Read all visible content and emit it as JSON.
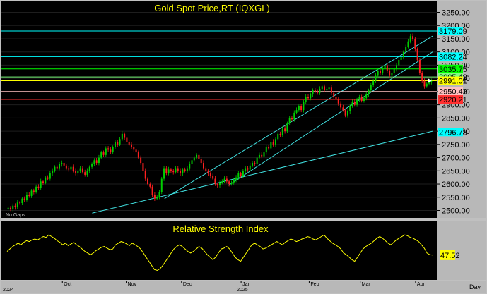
{
  "chart_data": [
    {
      "type": "candlestick",
      "title": "Gold Spot Price,RT  (IQXGL)",
      "corner_note": "No Gaps",
      "ylim": [
        2480,
        3270
      ],
      "y_ticks": [
        2500,
        2550,
        2600,
        2650,
        2700,
        2750,
        2800,
        2850,
        2900,
        2950,
        3000,
        3050,
        3100,
        3150,
        3200,
        3250
      ],
      "y_tick_labels": [
        "2500.00",
        "2550.00",
        "2600.00",
        "2650.00",
        "2700.00",
        "2750.00",
        "2800.00",
        "2850.00",
        "2900.00",
        "2950.00",
        "3000.00",
        "3050.00",
        "3100.00",
        "3150.00",
        "3200.00",
        "3250.00"
      ],
      "up_color": "#00d000",
      "down_color": "#ff2020",
      "closes": [
        2510,
        2505,
        2518,
        2512,
        2530,
        2528,
        2545,
        2540,
        2560,
        2555,
        2575,
        2570,
        2590,
        2585,
        2610,
        2605,
        2625,
        2620,
        2640,
        2650,
        2665,
        2660,
        2675,
        2680,
        2670,
        2660,
        2655,
        2665,
        2650,
        2640,
        2650,
        2660,
        2645,
        2635,
        2650,
        2665,
        2675,
        2690,
        2680,
        2700,
        2720,
        2710,
        2735,
        2730,
        2720,
        2740,
        2760,
        2750,
        2770,
        2790,
        2775,
        2760,
        2750,
        2740,
        2730,
        2720,
        2700,
        2680,
        2650,
        2620,
        2600,
        2590,
        2560,
        2545,
        2550,
        2570,
        2620,
        2660,
        2640,
        2655,
        2650,
        2645,
        2660,
        2650,
        2640,
        2655,
        2650,
        2660,
        2675,
        2690,
        2700,
        2710,
        2695,
        2680,
        2660,
        2650,
        2640,
        2630,
        2620,
        2600,
        2595,
        2605,
        2610,
        2620,
        2610,
        2600,
        2605,
        2615,
        2625,
        2640,
        2630,
        2650,
        2660,
        2655,
        2670,
        2680,
        2675,
        2700,
        2710,
        2705,
        2720,
        2740,
        2735,
        2760,
        2750,
        2770,
        2790,
        2785,
        2810,
        2800,
        2830,
        2850,
        2845,
        2870,
        2880,
        2895,
        2880,
        2910,
        2930,
        2925,
        2940,
        2955,
        2950,
        2945,
        2960,
        2970,
        2955,
        2960,
        2965,
        2945,
        2930,
        2920,
        2905,
        2890,
        2880,
        2860,
        2875,
        2895,
        2910,
        2900,
        2920,
        2930,
        2915,
        2925,
        2940,
        2955,
        2975,
        2990,
        3010,
        3030,
        3020,
        3040,
        3050,
        3030,
        3010,
        3020,
        3035,
        3050,
        3070,
        3080,
        3100,
        3120,
        3140,
        3160,
        3150,
        3110,
        3070,
        3020,
        2990,
        2970,
        2980,
        2985,
        2991.01
      ],
      "horizontal_levels": [
        {
          "value": 3179.09,
          "label": "3179.09",
          "color": "#00ffff",
          "text_color": "#000000"
        },
        {
          "value": 3082.24,
          "label": "3082.24",
          "color": "#00ffff",
          "text_color": "#000000"
        },
        {
          "value": 3035.75,
          "label": "3035.75",
          "color": "#00ff00",
          "text_color": "#000000"
        },
        {
          "value": 3005.42,
          "label": "3005.42",
          "color": "#80ff80",
          "text_color": "#000000"
        },
        {
          "value": 2991.01,
          "label": "2991.01",
          "color": "#ffff00",
          "text_color": "#000000"
        },
        {
          "value": 2950.42,
          "label": "2950.42",
          "color": "#ffc0c0",
          "text_color": "#000000"
        },
        {
          "value": 2920.21,
          "label": "2920.21",
          "color": "#ff3030",
          "text_color": "#000000"
        },
        {
          "value": 2796.78,
          "label": "2796.78",
          "color": "#00ffff",
          "text_color": "#000000"
        }
      ],
      "trend_lines": [
        {
          "from": [
            0.2,
            2490
          ],
          "to": [
            1.0,
            2800
          ],
          "color": "#40e0e0"
        },
        {
          "from": [
            0.37,
            2545
          ],
          "to": [
            1.0,
            3160
          ],
          "color": "#40e0e0"
        },
        {
          "from": [
            0.52,
            2595
          ],
          "to": [
            1.0,
            3100
          ],
          "color": "#40e0e0"
        }
      ]
    },
    {
      "type": "line",
      "title": "Relative Strength Index",
      "series_color": "#ffff00",
      "last_value": 47.52,
      "last_label": "47.52",
      "ylim": [
        20,
        85
      ],
      "values": [
        52,
        55,
        58,
        60,
        62,
        60,
        63,
        65,
        64,
        66,
        67,
        66,
        68,
        70,
        69,
        72,
        70,
        68,
        65,
        63,
        60,
        62,
        59,
        61,
        63,
        60,
        58,
        55,
        52,
        50,
        48,
        50,
        53,
        55,
        57,
        58,
        56,
        54,
        55,
        60,
        62,
        64,
        63,
        61,
        59,
        62,
        60,
        58,
        55,
        50,
        45,
        40,
        35,
        30,
        29,
        31,
        35,
        40,
        45,
        50,
        55,
        58,
        60,
        58,
        55,
        52,
        50,
        52,
        55,
        58,
        56,
        52,
        48,
        45,
        42,
        45,
        50,
        55,
        56,
        58,
        55,
        50,
        45,
        42,
        40,
        45,
        50,
        55,
        60,
        62,
        60,
        58,
        55,
        56,
        58,
        60,
        62,
        64,
        62,
        60,
        63,
        65,
        67,
        66,
        64,
        65,
        67,
        68,
        70,
        69,
        67,
        66,
        68,
        70,
        72,
        68,
        65,
        62,
        60,
        58,
        55,
        50,
        48,
        45,
        42,
        40,
        45,
        50,
        55,
        58,
        60,
        62,
        65,
        68,
        70,
        68,
        65,
        62,
        60,
        63,
        66,
        68,
        70,
        72,
        71,
        69,
        68,
        66,
        64,
        60,
        56,
        50,
        48,
        47.52
      ]
    }
  ],
  "x_axis": {
    "labels": [
      "Oct",
      "Nov",
      "Dec",
      "Jan",
      "Feb",
      "Mar",
      "Apr"
    ],
    "label_positions_frac": [
      0.13,
      0.28,
      0.41,
      0.55,
      0.71,
      0.83,
      0.96
    ],
    "years": [
      {
        "label": "2024",
        "frac": 0.0
      },
      {
        "label": "2025",
        "frac": 0.55
      }
    ],
    "timeframe": "Day"
  }
}
